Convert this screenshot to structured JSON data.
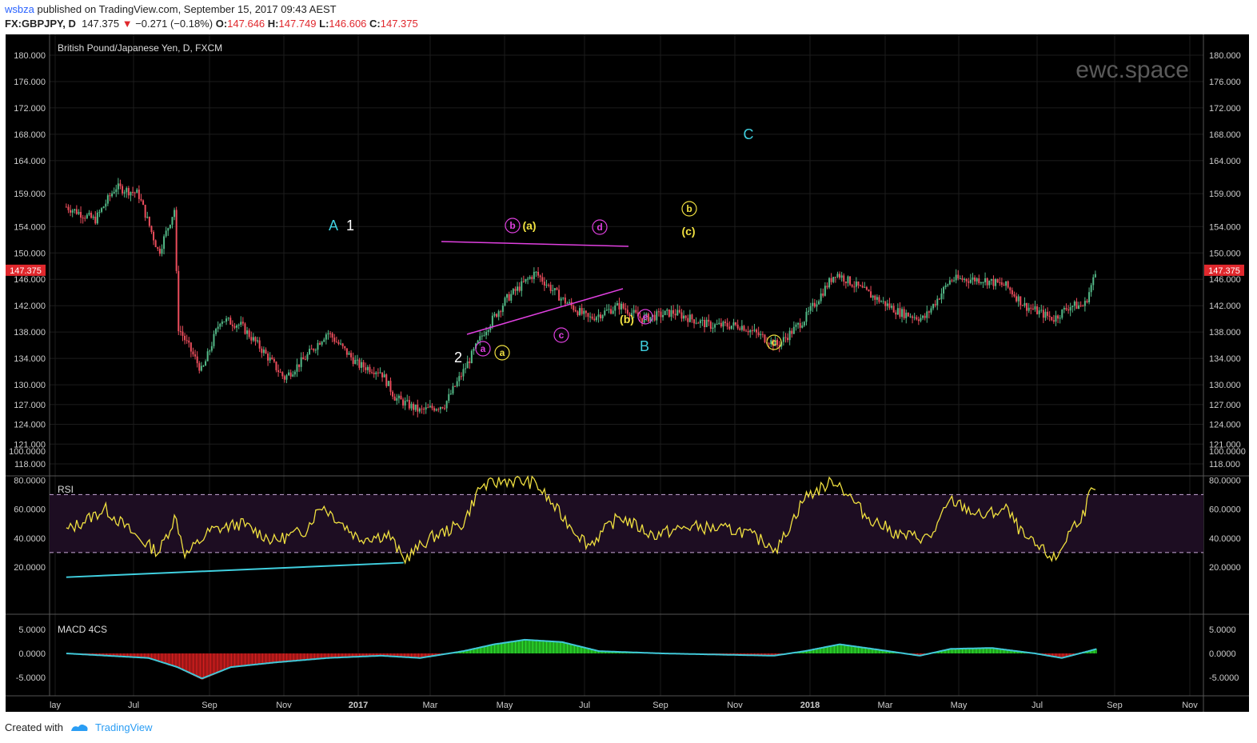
{
  "header": {
    "user": "wsbza",
    "published_text": "published on TradingView.com, September 15, 2017 09:43 AEST"
  },
  "quote": {
    "symbol": "FX:GBPJPY, D",
    "price": "147.375",
    "change": "−0.271 (−0.18%)",
    "open_label": "O:",
    "open": "147.646",
    "high_label": "H:",
    "high": "147.749",
    "low_label": "L:",
    "low": "146.606",
    "close_label": "C:",
    "close": "147.375"
  },
  "footer": {
    "created_with": "Created with",
    "brand": "TradingView"
  },
  "chart_data": [
    {
      "type": "candlestick",
      "title": "British Pound/Japanese Yen, D, FXCM",
      "watermark": "ewc.space",
      "x_ticks": [
        "lay",
        "Jul",
        "Sep",
        "Nov",
        "2017",
        "Mar",
        "May",
        "Jul",
        "Sep",
        "Nov",
        "2018",
        "Mar",
        "May",
        "Jul",
        "Sep",
        "Nov"
      ],
      "y_ticks": [
        "180.000",
        "176.000",
        "172.000",
        "168.000",
        "164.000",
        "159.000",
        "154.000",
        "150.000",
        "146.000",
        "142.000",
        "138.000",
        "134.000",
        "130.000",
        "127.000",
        "124.000",
        "121.000",
        "118.000"
      ],
      "last_price": "147.375",
      "colors": {
        "up": "#53b987",
        "down": "#eb4d5c",
        "resistance": "#e040e0",
        "annotation_cyan": "#40d0e0",
        "annotation_yellow": "#f0e040",
        "annotation_magenta": "#e040e0"
      },
      "wave_labels": [
        {
          "text": "A",
          "color": "cyan"
        },
        {
          "text": "1",
          "color": "white"
        },
        {
          "text": "2",
          "color": "white"
        },
        {
          "text": "a",
          "color": "magenta",
          "circled": true
        },
        {
          "text": "a",
          "color": "yellow",
          "circled": true
        },
        {
          "text": "b",
          "color": "magenta",
          "circled": true
        },
        {
          "text": "(a)",
          "color": "yellow"
        },
        {
          "text": "c",
          "color": "magenta",
          "circled": true
        },
        {
          "text": "d",
          "color": "magenta",
          "circled": true
        },
        {
          "text": "(b)",
          "color": "yellow"
        },
        {
          "text": "e",
          "color": "magenta",
          "circled": true
        },
        {
          "text": "B",
          "color": "cyan"
        },
        {
          "text": "b",
          "color": "yellow",
          "circled": true
        },
        {
          "text": "(c)",
          "color": "yellow"
        },
        {
          "text": "C",
          "color": "cyan"
        },
        {
          "text": "c",
          "color": "yellow",
          "circled": true
        }
      ],
      "price_path": [
        {
          "d": "2016-05-01",
          "v": 157
        },
        {
          "d": "2016-05-15",
          "v": 155
        },
        {
          "d": "2016-05-25",
          "v": 160
        },
        {
          "d": "2016-06-05",
          "v": 159
        },
        {
          "d": "2016-06-15",
          "v": 150
        },
        {
          "d": "2016-06-23",
          "v": 157
        },
        {
          "d": "2016-06-24",
          "v": 139
        },
        {
          "d": "2016-07-06",
          "v": 132
        },
        {
          "d": "2016-07-15",
          "v": 140
        },
        {
          "d": "2016-07-25",
          "v": 139
        },
        {
          "d": "2016-08-05",
          "v": 135
        },
        {
          "d": "2016-08-15",
          "v": 131
        },
        {
          "d": "2016-08-25",
          "v": 134
        },
        {
          "d": "2016-09-05",
          "v": 138
        },
        {
          "d": "2016-09-20",
          "v": 133
        },
        {
          "d": "2016-10-01",
          "v": 132
        },
        {
          "d": "2016-10-08",
          "v": 128
        },
        {
          "d": "2016-10-20",
          "v": 126
        },
        {
          "d": "2016-11-01",
          "v": 127
        },
        {
          "d": "2016-11-10",
          "v": 132
        },
        {
          "d": "2016-11-20",
          "v": 138
        },
        {
          "d": "2016-12-01",
          "v": 143
        },
        {
          "d": "2016-12-15",
          "v": 147
        },
        {
          "d": "2016-12-28",
          "v": 143
        },
        {
          "d": "2017-01-10",
          "v": 140
        },
        {
          "d": "2017-01-25",
          "v": 142
        },
        {
          "d": "2017-02-05",
          "v": 140
        },
        {
          "d": "2017-02-20",
          "v": 141
        },
        {
          "d": "2017-03-10",
          "v": 139
        },
        {
          "d": "2017-03-25",
          "v": 139
        },
        {
          "d": "2017-04-12",
          "v": 136
        },
        {
          "d": "2017-04-25",
          "v": 140
        },
        {
          "d": "2017-05-10",
          "v": 147
        },
        {
          "d": "2017-05-25",
          "v": 144
        },
        {
          "d": "2017-06-10",
          "v": 141
        },
        {
          "d": "2017-06-22",
          "v": 140
        },
        {
          "d": "2017-07-05",
          "v": 146
        },
        {
          "d": "2017-07-20",
          "v": 146
        },
        {
          "d": "2017-08-01",
          "v": 145
        },
        {
          "d": "2017-08-10",
          "v": 142
        },
        {
          "d": "2017-08-24",
          "v": 140
        },
        {
          "d": "2017-09-01",
          "v": 142
        },
        {
          "d": "2017-09-08",
          "v": 142
        },
        {
          "d": "2017-09-14",
          "v": 147.4
        }
      ]
    },
    {
      "type": "line",
      "title": "RSI",
      "y_ticks": [
        "100.0000",
        "80.0000",
        "60.0000",
        "40.0000",
        "20.0000"
      ],
      "ylim": [
        0,
        100
      ],
      "bands": [
        70,
        30
      ],
      "line_color": "#f0e040",
      "series": [
        {
          "values": [
            {
              "d": "2016-05-01",
              "v": 45
            },
            {
              "d": "2016-05-20",
              "v": 60
            },
            {
              "d": "2016-06-05",
              "v": 40
            },
            {
              "d": "2016-06-15",
              "v": 30
            },
            {
              "d": "2016-06-23",
              "v": 55
            },
            {
              "d": "2016-06-28",
              "v": 28
            },
            {
              "d": "2016-07-10",
              "v": 45
            },
            {
              "d": "2016-07-25",
              "v": 50
            },
            {
              "d": "2016-08-10",
              "v": 38
            },
            {
              "d": "2016-08-25",
              "v": 45
            },
            {
              "d": "2016-09-02",
              "v": 63
            },
            {
              "d": "2016-09-20",
              "v": 40
            },
            {
              "d": "2016-10-05",
              "v": 42
            },
            {
              "d": "2016-10-12",
              "v": 25
            },
            {
              "d": "2016-10-25",
              "v": 40
            },
            {
              "d": "2016-11-10",
              "v": 50
            },
            {
              "d": "2016-11-18",
              "v": 75
            },
            {
              "d": "2016-12-01",
              "v": 80
            },
            {
              "d": "2016-12-15",
              "v": 78
            },
            {
              "d": "2016-12-28",
              "v": 55
            },
            {
              "d": "2017-01-10",
              "v": 35
            },
            {
              "d": "2017-01-25",
              "v": 55
            },
            {
              "d": "2017-02-10",
              "v": 42
            },
            {
              "d": "2017-03-01",
              "v": 48
            },
            {
              "d": "2017-03-25",
              "v": 45
            },
            {
              "d": "2017-04-12",
              "v": 33
            },
            {
              "d": "2017-04-25",
              "v": 68
            },
            {
              "d": "2017-05-10",
              "v": 80
            },
            {
              "d": "2017-05-25",
              "v": 55
            },
            {
              "d": "2017-06-10",
              "v": 42
            },
            {
              "d": "2017-06-25",
              "v": 40
            },
            {
              "d": "2017-07-05",
              "v": 66
            },
            {
              "d": "2017-07-20",
              "v": 55
            },
            {
              "d": "2017-08-01",
              "v": 60
            },
            {
              "d": "2017-08-10",
              "v": 40
            },
            {
              "d": "2017-08-25",
              "v": 25
            },
            {
              "d": "2017-09-01",
              "v": 45
            },
            {
              "d": "2017-09-08",
              "v": 58
            },
            {
              "d": "2017-09-11",
              "v": 72
            },
            {
              "d": "2017-09-14",
              "v": 70
            }
          ]
        }
      ],
      "divergence_line": [
        {
          "d": "2016-05-01",
          "v": 13
        },
        {
          "d": "2016-10-12",
          "v": 23
        }
      ]
    },
    {
      "type": "bar",
      "title": "MACD 4CS",
      "y_ticks": [
        "5.0000",
        "0.0000",
        "-5.0000"
      ],
      "ylim": [
        -7.5,
        7.5
      ],
      "colors": {
        "positive": "#2ee82e",
        "negative": "#e02020",
        "signal": "#40c8d8"
      },
      "series": [
        {
          "name": "histogram",
          "values": [
            {
              "d": "2016-05-01",
              "v": 0
            },
            {
              "d": "2016-06-10",
              "v": -1
            },
            {
              "d": "2016-06-24",
              "v": -3
            },
            {
              "d": "2016-07-06",
              "v": -5.5
            },
            {
              "d": "2016-07-20",
              "v": -3
            },
            {
              "d": "2016-08-10",
              "v": -2
            },
            {
              "d": "2016-09-05",
              "v": -1
            },
            {
              "d": "2016-10-01",
              "v": -0.5
            },
            {
              "d": "2016-10-20",
              "v": -1
            },
            {
              "d": "2016-11-10",
              "v": 0.5
            },
            {
              "d": "2016-11-25",
              "v": 2
            },
            {
              "d": "2016-12-10",
              "v": 3
            },
            {
              "d": "2016-12-28",
              "v": 2.5
            },
            {
              "d": "2017-01-15",
              "v": 0.5
            },
            {
              "d": "2017-02-15",
              "v": 0
            },
            {
              "d": "2017-04-10",
              "v": -0.5
            },
            {
              "d": "2017-04-25",
              "v": 0.5
            },
            {
              "d": "2017-05-12",
              "v": 2
            },
            {
              "d": "2017-05-28",
              "v": 1
            },
            {
              "d": "2017-06-20",
              "v": -0.5
            },
            {
              "d": "2017-07-05",
              "v": 1
            },
            {
              "d": "2017-07-25",
              "v": 1.2
            },
            {
              "d": "2017-08-15",
              "v": 0
            },
            {
              "d": "2017-08-28",
              "v": -1
            },
            {
              "d": "2017-09-10",
              "v": 0.5
            },
            {
              "d": "2017-09-14",
              "v": 1
            }
          ]
        }
      ]
    }
  ]
}
